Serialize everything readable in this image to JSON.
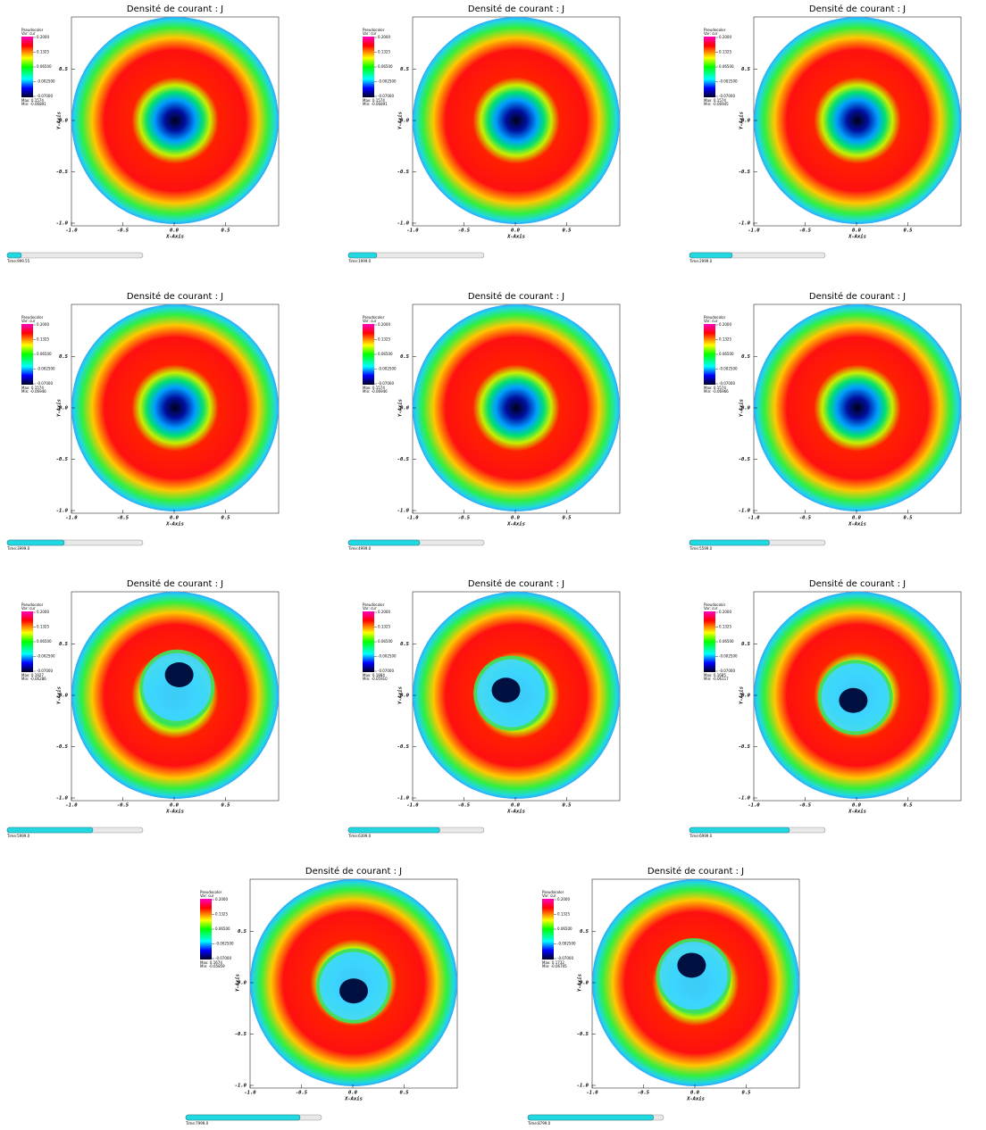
{
  "common": {
    "title": "Densité de courant : J",
    "legend_title": "Pseudocolor",
    "legend_var": "Var: cur",
    "legend_ticks": [
      "0.2000",
      "0.1325",
      "0.06500",
      "-0.002500",
      "-0.07000"
    ],
    "x_axis_label": "X-Axis",
    "y_axis_label": "Y-Axis",
    "x_ticks": [
      "-1.0",
      "-0.5",
      "0.0",
      "0.5"
    ],
    "y_ticks": [
      "0.5",
      "0.0",
      "-0.5",
      "-1.0"
    ],
    "time_lim": [
      0,
      9500
    ]
  },
  "panels": [
    {
      "max": "Max: 0.1574",
      "min": "Min: -0.06891",
      "time": {
        "value": 999.55,
        "label": "Time:999.55"
      }
    },
    {
      "max": "Max: 0.1574",
      "min": "Min: -0.06891",
      "time": {
        "value": 1999.0,
        "label": "Time:1999.0"
      }
    },
    {
      "max": "Max: 0.1574",
      "min": "Min: -0.06945",
      "time": {
        "value": 2999.0,
        "label": "Time:2999.0"
      }
    },
    {
      "max": "Max: 0.1574",
      "min": "Min: -0.06946",
      "time": {
        "value": 3999.0,
        "label": "Time:3999.0"
      }
    },
    {
      "max": "Max: 0.1574",
      "min": "Min: -0.06946",
      "time": {
        "value": 4999.0,
        "label": "Time:4999.0"
      }
    },
    {
      "max": "Max: 0.1574",
      "min": "Min: -0.06966",
      "time": {
        "value": 5599.0,
        "label": "Time:5599.0"
      }
    },
    {
      "max": "Max: 0.1927",
      "min": "Min: -0.06286",
      "time": {
        "value": 5999.0,
        "label": "Time:5999.0"
      }
    },
    {
      "max": "Max: 0.1884",
      "min": "Min: -0.05910",
      "time": {
        "value": 6399.0,
        "label": "Time:6399.0"
      }
    },
    {
      "max": "Max: 0.1685",
      "min": "Min: -0.06117",
      "time": {
        "value": 6999.0,
        "label": "Time:6999.0"
      }
    },
    {
      "max": "Max: 0.1674",
      "min": "Min: -0.05859",
      "time": {
        "value": 7999.0,
        "label": "Time:7999.0"
      }
    },
    {
      "max": "Max: 0.1732",
      "min": "Min: -0.06705",
      "time": {
        "value": 8799.0,
        "label": "Time:8799.0"
      }
    }
  ]
}
